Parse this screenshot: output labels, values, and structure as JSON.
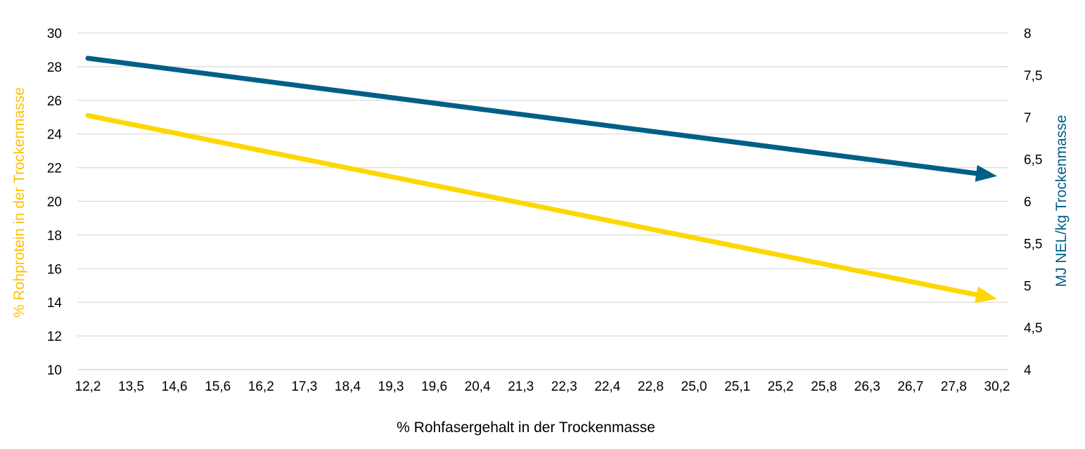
{
  "chart_data": {
    "type": "line",
    "xlabel": "% Rohfasergehalt in der Trockenmasse",
    "ylabel_left": "% Rohprotein in der Trockenmasse",
    "ylabel_right": "MJ NEL/kg Trockenmasse",
    "categories": [
      "12,2",
      "13,5",
      "14,6",
      "15,6",
      "16,2",
      "17,3",
      "18,4",
      "19,3",
      "19,6",
      "20,4",
      "21,3",
      "22,3",
      "22,4",
      "22,8",
      "25,0",
      "25,1",
      "25,2",
      "25,8",
      "26,3",
      "26,7",
      "27,8",
      "30,2"
    ],
    "y_left": {
      "range": [
        10,
        30
      ],
      "ticks": [
        "10",
        "12",
        "14",
        "16",
        "18",
        "20",
        "22",
        "24",
        "26",
        "28",
        "30"
      ]
    },
    "y_right": {
      "range": [
        4,
        8
      ],
      "ticks": [
        "4",
        "4,5",
        "5",
        "5,5",
        "6",
        "6,5",
        "7",
        "7,5",
        "8"
      ]
    },
    "grid": true,
    "series": [
      {
        "axis": "left",
        "color": "#FFD700",
        "start": 25.1,
        "end": 14.2,
        "arrow_end": true
      },
      {
        "axis": "right",
        "color": "#005F87",
        "start": 7.7,
        "end": 6.3,
        "arrow_end": true
      }
    ],
    "colors": {
      "left_axis_title": "#FFC000",
      "right_axis_title": "#005F87",
      "grid": "#D9D9D9"
    }
  }
}
